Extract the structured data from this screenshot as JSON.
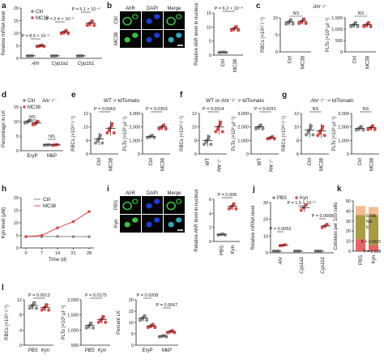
{
  "colors": {
    "ctrl": "#8a8a8a",
    "treat": "#e04848",
    "pbs": "#8a8a8a",
    "kyn": "#e04848",
    "gfp": "#35c23a",
    "dapi": "#1c3cd8",
    "bm_e": "#f3b07f",
    "bm_mk": "#9a8a22",
    "bm_e2": "#e04848"
  },
  "panel_letters": {
    "a": "a",
    "b": "b",
    "c": "c",
    "d": "d",
    "e": "e",
    "f": "f",
    "g": "g",
    "h": "h",
    "i": "i",
    "j": "j",
    "k": "k",
    "l": "l"
  },
  "micro_b": {
    "labels": [
      "AhR",
      "DAPI",
      "Merge"
    ],
    "rows": [
      "Ctrl",
      "MC38"
    ]
  },
  "micro_i": {
    "labels": [
      "AhR",
      "DAPI",
      "Merge"
    ],
    "rows": [
      "PBS",
      "Kyn"
    ]
  },
  "titles": {
    "e": "WT > tdTomato",
    "f": "WT or Ahr⁻/⁻ > tdTomato",
    "g": "Ahr⁻/⁻ > tdTomato"
  },
  "chart_data": [
    {
      "id": "a",
      "type": "scatter",
      "ylabel": "Relative mRNA level",
      "ylim": [
        0,
        20
      ],
      "yticks": [
        "0",
        "5",
        "10",
        "15",
        "20"
      ],
      "categories": [
        "Ahr",
        "Cyp1a1",
        "Cyp1b1"
      ],
      "legend": [
        "Ctrl",
        "MC38"
      ],
      "series": [
        {
          "name": "Ctrl",
          "values": [
            1,
            1,
            1
          ]
        },
        {
          "name": "MC38",
          "values": [
            5,
            10.5,
            14
          ]
        }
      ],
      "annotations": [
        "P = 8.5 × 10⁻⁵",
        "P = 2.4 × 10⁻⁵",
        "P = 5.1 × 10⁻⁶"
      ]
    },
    {
      "id": "b",
      "type": "scatter",
      "ylabel": "Relative AhR level in nucleus",
      "ylim": [
        0,
        15
      ],
      "yticks": [
        "0",
        "5",
        "10",
        "15"
      ],
      "categories": [
        "Ctrl",
        "MC38"
      ],
      "values": [
        1,
        9.5
      ],
      "annotations": [
        "P = 6.2 × 10⁻⁶"
      ]
    },
    {
      "id": "c1",
      "type": "scatter",
      "ylabel": "RBCs (×10¹² l⁻¹)",
      "ylim": [
        0,
        10
      ],
      "yticks": [
        "0",
        "5",
        "10"
      ],
      "categories": [
        "Ctrl",
        "MC38"
      ],
      "values": [
        8.8,
        9.0
      ],
      "annotations": [
        "NS"
      ],
      "title": "Ahr⁻/⁻"
    },
    {
      "id": "c2",
      "type": "scatter",
      "ylabel": "PLTs (×10³ μl⁻¹)",
      "ylim": [
        0,
        1500
      ],
      "yticks": [
        "0",
        "500",
        "1,000",
        "1,500"
      ],
      "categories": [
        "Ctrl",
        "MC38"
      ],
      "values": [
        1200,
        1200
      ],
      "annotations": [
        "NS"
      ]
    },
    {
      "id": "d",
      "type": "scatter",
      "ylabel": "Percentage in LK",
      "ylim": [
        0,
        15
      ],
      "yticks": [
        "0",
        "5",
        "10",
        "15"
      ],
      "categories": [
        "EryP",
        "MkP"
      ],
      "legend": [
        "Ctrl",
        "MC38"
      ],
      "legend_note": "Ahr⁻/⁻",
      "series": [
        {
          "name": "Ctrl",
          "values": [
            10,
            2
          ]
        },
        {
          "name": "MC38",
          "values": [
            9.5,
            2
          ]
        }
      ],
      "annotations": [
        "NS",
        "NS"
      ]
    },
    {
      "id": "e1",
      "type": "scatter",
      "ylabel": "RBCs (×10¹² l⁻¹)",
      "ylim": [
        6,
        12
      ],
      "yticks": [
        "6",
        "8",
        "10",
        "12"
      ],
      "categories": [
        "Ctrl",
        "MC38"
      ],
      "values": [
        8.2,
        9.8
      ],
      "annotations": [
        "P = 0.0063"
      ]
    },
    {
      "id": "e2",
      "type": "scatter",
      "ylabel": "PLTs (×10³ μl⁻¹)",
      "ylim": [
        0,
        3000
      ],
      "yticks": [
        "0",
        "1,000",
        "2,000",
        "3,000"
      ],
      "categories": [
        "Ctrl",
        "MC38"
      ],
      "values": [
        1300,
        2000
      ],
      "annotations": [
        "P = 0.0303"
      ]
    },
    {
      "id": "f1",
      "type": "scatter",
      "ylabel": "RBCs (×10¹² l⁻¹)",
      "ylim": [
        6,
        12
      ],
      "yticks": [
        "6",
        "8",
        "10",
        "12"
      ],
      "categories": [
        "WT",
        "Ahr⁻/⁻"
      ],
      "values": [
        8.0,
        10.0
      ],
      "annotations": [
        "P = 0.0014"
      ]
    },
    {
      "id": "f2",
      "type": "scatter",
      "ylabel": "PLTs (×10³ μl⁻¹)",
      "ylim": [
        0,
        3000
      ],
      "yticks": [
        "0",
        "1,000",
        "2,000",
        "3,000"
      ],
      "categories": [
        "WT",
        "Ahr⁻/⁻"
      ],
      "values": [
        2000,
        1200
      ],
      "annotations": [
        "P = 0.0031"
      ]
    },
    {
      "id": "g1",
      "type": "scatter",
      "ylabel": "RBCs (×10¹² l⁻¹)",
      "ylim": [
        6,
        12
      ],
      "yticks": [
        "6",
        "8",
        "10",
        "12"
      ],
      "categories": [
        "Ctrl",
        "MC38"
      ],
      "values": [
        9.5,
        9.4
      ],
      "annotations": [
        "NS"
      ]
    },
    {
      "id": "g2",
      "type": "scatter",
      "ylabel": "PLTs (×10³ μl⁻¹)",
      "ylim": [
        0,
        3000
      ],
      "yticks": [
        "0",
        "1,000",
        "2,000",
        "3,000"
      ],
      "categories": [
        "Ctrl",
        "MC38"
      ],
      "values": [
        1900,
        1950
      ],
      "annotations": [
        "NS"
      ]
    },
    {
      "id": "h",
      "type": "line",
      "ylabel": "Kyn level (μM)",
      "xlabel": "Time (d)",
      "ylim": [
        0,
        20
      ],
      "yticks": [
        "0",
        "5",
        "10",
        "15",
        "20"
      ],
      "x": [
        0,
        7,
        14,
        21,
        28
      ],
      "legend": [
        "Ctrl",
        "MC38"
      ],
      "series": [
        {
          "name": "Ctrl",
          "values": [
            4.5,
            4.5,
            4.6,
            4.5,
            4.5
          ]
        },
        {
          "name": "MC38",
          "values": [
            4.5,
            5.0,
            8.0,
            10.5,
            14.5
          ]
        }
      ]
    },
    {
      "id": "i",
      "type": "scatter",
      "ylabel": "Relative AhR level in nucleus",
      "ylim": [
        0,
        6
      ],
      "yticks": [
        "0",
        "2",
        "4",
        "6"
      ],
      "categories": [
        "PBS",
        "Kyn"
      ],
      "values": [
        1,
        5
      ],
      "annotations": [
        "P = 0.008"
      ]
    },
    {
      "id": "j",
      "type": "scatter",
      "ylabel": "Relative mRNA level",
      "ylim": [
        0,
        30
      ],
      "yticks": [
        "0",
        "10",
        "20",
        "30"
      ],
      "categories": [
        "Ahr",
        "Cyp1a1",
        "Cyp1b1"
      ],
      "legend": [
        "PBS",
        "Kyn"
      ],
      "series": [
        {
          "name": "PBS",
          "values": [
            1,
            1,
            1
          ]
        },
        {
          "name": "Kyn",
          "values": [
            4.5,
            27,
            16
          ]
        }
      ],
      "annotations": [
        "P = 0.0053",
        "P = 1.5 × 10⁻⁵",
        "P = 0.0008"
      ]
    },
    {
      "id": "k",
      "type": "bar",
      "ylabel": "Colonies per 100 cells",
      "ylim": [
        0,
        50
      ],
      "yticks": [
        "0",
        "10",
        "20",
        "30",
        "40",
        "50"
      ],
      "categories": [
        "PBS",
        "Kyn"
      ],
      "series": [
        {
          "name": "E",
          "values": [
            12,
            6
          ]
        },
        {
          "name": "Mk",
          "values": [
            24,
            30
          ]
        },
        {
          "name": "E/Mk",
          "values": [
            9,
            8
          ]
        }
      ],
      "annotations": [
        "P = 0.0015",
        "P = 0.022"
      ]
    },
    {
      "id": "l1",
      "type": "scatter",
      "ylabel": "RBCs (×10¹² l⁻¹)",
      "ylim": [
        0,
        12
      ],
      "yticks": [
        "0",
        "4",
        "8",
        "12"
      ],
      "categories": [
        "PBS",
        "Kyn"
      ],
      "values": [
        10.5,
        10.0
      ],
      "annotations": [
        "P = 0.0013"
      ]
    },
    {
      "id": "l2",
      "type": "scatter",
      "ylabel": "PLTs (×10³ μl⁻¹)",
      "ylim": [
        500,
        2000
      ],
      "yticks": [
        "500",
        "1,000",
        "1,500",
        "2,000"
      ],
      "categories": [
        "PBS",
        "Kyn"
      ],
      "values": [
        1150,
        1350
      ],
      "annotations": [
        "P = 0.0175"
      ]
    },
    {
      "id": "l3",
      "type": "scatter",
      "ylabel": "Percent LK",
      "ylim": [
        0,
        20
      ],
      "yticks": [
        "0",
        "5",
        "10",
        "15",
        "20"
      ],
      "categories": [
        "EryP",
        "MkP"
      ],
      "series": [
        {
          "name": "PBS",
          "values": [
            12,
            4
          ]
        },
        {
          "name": "Kyn",
          "values": [
            8.5,
            6
          ]
        }
      ],
      "annotations": [
        "P = 0.0208",
        "P = 0.0067"
      ]
    }
  ]
}
